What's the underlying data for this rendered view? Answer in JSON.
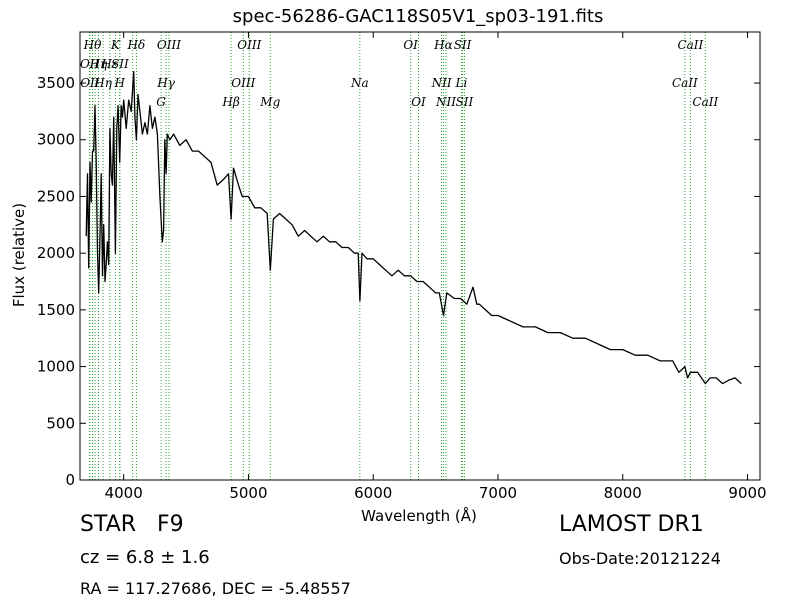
{
  "chart_data": {
    "type": "line",
    "title": "spec-56286-GAC118S05V1_sp03-191.fits",
    "xlabel": "Wavelength (Å)",
    "ylabel": "Flux (relative)",
    "xlim": [
      3650,
      9100
    ],
    "ylim": [
      0,
      3950
    ],
    "xticks": [
      4000,
      5000,
      6000,
      7000,
      8000,
      9000
    ],
    "yticks": [
      0,
      500,
      1000,
      1500,
      2000,
      2500,
      3000,
      3500
    ],
    "grid": false,
    "line_color": "#000000",
    "marker_color": "#2ca02c",
    "series": [
      {
        "x": [
          3700,
          3710,
          3720,
          3730,
          3740,
          3750,
          3760,
          3770,
          3780,
          3790,
          3800,
          3810,
          3820,
          3830,
          3840,
          3850,
          3860,
          3870,
          3880,
          3890,
          3900,
          3910,
          3920,
          3934,
          3945,
          3955,
          3968,
          3980,
          3990,
          4000,
          4020,
          4040,
          4060,
          4080,
          4090,
          4102,
          4115,
          4130,
          4150,
          4170,
          4190,
          4210,
          4230,
          4250,
          4270,
          4290,
          4310,
          4320,
          4330,
          4340,
          4350,
          4370,
          4400,
          4450,
          4500,
          4550,
          4600,
          4650,
          4700,
          4750,
          4800,
          4840,
          4861,
          4880,
          4920,
          4950,
          5000,
          5050,
          5100,
          5150,
          5175,
          5200,
          5250,
          5300,
          5350,
          5400,
          5450,
          5500,
          5550,
          5600,
          5650,
          5700,
          5750,
          5800,
          5850,
          5880,
          5893,
          5910,
          5950,
          6000,
          6050,
          6100,
          6150,
          6200,
          6250,
          6300,
          6350,
          6400,
          6450,
          6500,
          6530,
          6563,
          6590,
          6650,
          6700,
          6750,
          6800,
          6830,
          6850,
          6900,
          6950,
          7000,
          7100,
          7200,
          7300,
          7400,
          7500,
          7600,
          7700,
          7800,
          7900,
          8000,
          8100,
          8200,
          8300,
          8400,
          8450,
          8498,
          8520,
          8542,
          8600,
          8662,
          8700,
          8750,
          8800,
          8850,
          8900,
          8950
        ],
        "y": [
          2150,
          2700,
          1870,
          2800,
          2450,
          2900,
          2900,
          3300,
          2800,
          2000,
          1650,
          2150,
          2700,
          1800,
          2250,
          1750,
          1900,
          2100,
          1900,
          3100,
          2700,
          2600,
          3200,
          2000,
          3100,
          3300,
          2800,
          3300,
          3200,
          3350,
          3100,
          3350,
          3250,
          3600,
          3200,
          3000,
          3400,
          3250,
          3050,
          3150,
          3050,
          3300,
          3100,
          3200,
          3050,
          2500,
          2100,
          2200,
          3000,
          2700,
          3050,
          3000,
          3050,
          2950,
          3000,
          2900,
          2900,
          2850,
          2800,
          2600,
          2650,
          2700,
          2300,
          2750,
          2600,
          2500,
          2500,
          2400,
          2400,
          2350,
          1850,
          2300,
          2350,
          2300,
          2250,
          2150,
          2200,
          2150,
          2100,
          2150,
          2100,
          2100,
          2050,
          2050,
          2000,
          2000,
          1580,
          2000,
          1950,
          1950,
          1900,
          1850,
          1800,
          1850,
          1800,
          1800,
          1750,
          1750,
          1700,
          1650,
          1650,
          1450,
          1650,
          1600,
          1600,
          1550,
          1700,
          1550,
          1550,
          1500,
          1450,
          1450,
          1400,
          1350,
          1350,
          1300,
          1300,
          1250,
          1250,
          1200,
          1150,
          1150,
          1100,
          1100,
          1050,
          1050,
          950,
          1000,
          900,
          950,
          950,
          850,
          900,
          900,
          850,
          880,
          900,
          850
        ]
      }
    ],
    "lines": [
      {
        "x": 3727,
        "row": 2,
        "label": "OII"
      },
      {
        "x": 3729,
        "row": 3,
        "label": "OII"
      },
      {
        "x": 3750,
        "row": 1,
        "label": "Hθ"
      },
      {
        "x": 3771,
        "row": 1,
        "label": ""
      },
      {
        "x": 3798,
        "row": 2,
        "label": "Hη"
      },
      {
        "x": 3835,
        "row": 3,
        "label": "Hη"
      },
      {
        "x": 3889,
        "row": 2,
        "label": "Hε"
      },
      {
        "x": 3934,
        "row": 1,
        "label": "K"
      },
      {
        "x": 3968,
        "row": 3,
        "label": "H"
      },
      {
        "x": 3970,
        "row": 2,
        "label": "SII"
      },
      {
        "x": 4072,
        "row": 2,
        "label": ""
      },
      {
        "x": 4102,
        "row": 1,
        "label": "Hδ"
      },
      {
        "x": 4300,
        "row": 4,
        "label": "G"
      },
      {
        "x": 4340,
        "row": 3,
        "label": "Hγ"
      },
      {
        "x": 4363,
        "row": 1,
        "label": "OIII"
      },
      {
        "x": 4861,
        "row": 4,
        "label": "Hβ"
      },
      {
        "x": 4959,
        "row": 3,
        "label": "OIII"
      },
      {
        "x": 5007,
        "row": 1,
        "label": "OIII"
      },
      {
        "x": 5175,
        "row": 4,
        "label": "Mg"
      },
      {
        "x": 5893,
        "row": 3,
        "label": "Na"
      },
      {
        "x": 6300,
        "row": 1,
        "label": "OI"
      },
      {
        "x": 6363,
        "row": 4,
        "label": "OI"
      },
      {
        "x": 6548,
        "row": 3,
        "label": "NII"
      },
      {
        "x": 6563,
        "row": 1,
        "label": "Hα"
      },
      {
        "x": 6583,
        "row": 4,
        "label": "NII"
      },
      {
        "x": 6707,
        "row": 3,
        "label": "Li"
      },
      {
        "x": 6716,
        "row": 1,
        "label": "SII"
      },
      {
        "x": 6731,
        "row": 4,
        "label": "SII"
      },
      {
        "x": 8498,
        "row": 3,
        "label": "CaII"
      },
      {
        "x": 8542,
        "row": 1,
        "label": "CaII"
      },
      {
        "x": 8662,
        "row": 4,
        "label": "CaII"
      }
    ]
  },
  "info": {
    "object_class": "STAR   F9",
    "survey": "LAMOST DR1",
    "redshift": "cz = 6.8 ± 1.6",
    "obs_date": "Obs-Date:20121224",
    "coords": "RA = 117.27686, DEC = -5.48557"
  }
}
